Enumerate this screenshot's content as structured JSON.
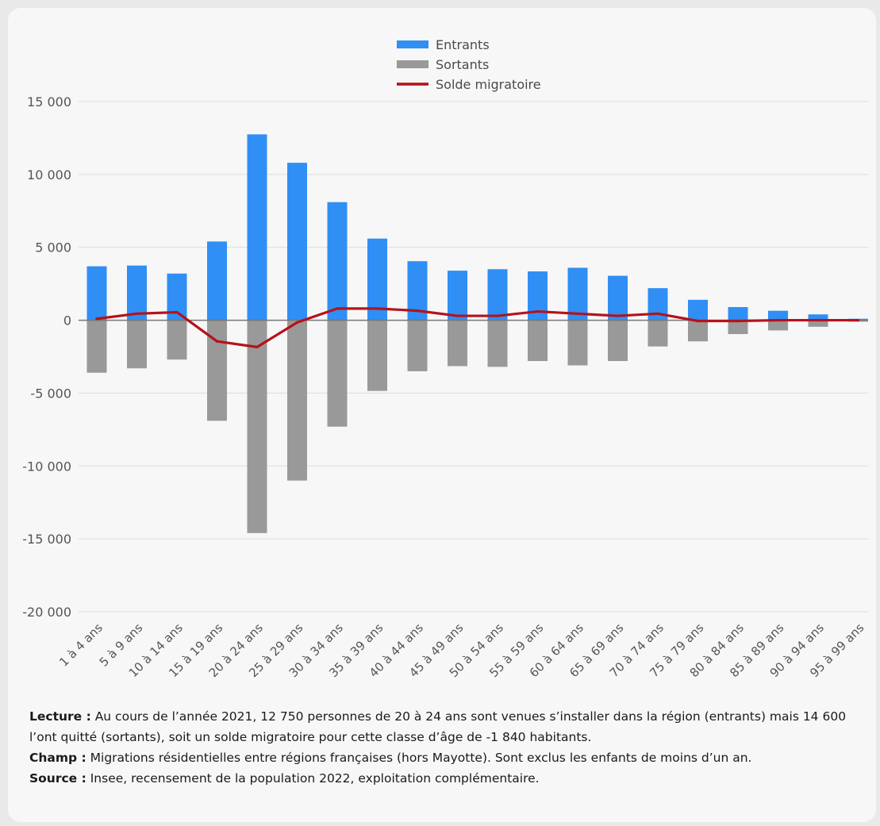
{
  "chart_data": {
    "type": "bar",
    "categories": [
      "1 à 4 ans",
      "5 à 9 ans",
      "10 à 14 ans",
      "15 à 19 ans",
      "20 à 24 ans",
      "25 à 29 ans",
      "30 à 34 ans",
      "35 à 39 ans",
      "40 à 44 ans",
      "45 à 49 ans",
      "50 à 54 ans",
      "55 à 59 ans",
      "60 à 64 ans",
      "65 à 69 ans",
      "70 à 74 ans",
      "75 à 79 ans",
      "80 à 84 ans",
      "85 à 89 ans",
      "90 à 94 ans",
      "95 à 99 ans"
    ],
    "series": [
      {
        "name": "Entrants",
        "type": "bar",
        "color": "#2f8ff5",
        "values": [
          3700,
          3750,
          3200,
          5400,
          12750,
          10800,
          8100,
          5600,
          4050,
          3400,
          3500,
          3350,
          3600,
          3050,
          2200,
          1400,
          900,
          650,
          400,
          100
        ]
      },
      {
        "name": "Sortants",
        "type": "bar",
        "color": "#999999",
        "values": [
          -3600,
          -3300,
          -2700,
          -6900,
          -14600,
          -11000,
          -7300,
          -4850,
          -3500,
          -3150,
          -3200,
          -2800,
          -3100,
          -2800,
          -1800,
          -1450,
          -950,
          -700,
          -450,
          -100
        ]
      },
      {
        "name": "Solde migratoire",
        "type": "line",
        "color": "#b5121b",
        "values": [
          100,
          450,
          550,
          -1450,
          -1840,
          -150,
          800,
          800,
          650,
          300,
          300,
          600,
          450,
          300,
          450,
          -50,
          -50,
          0,
          0,
          0
        ]
      }
    ],
    "ylim": [
      -20000,
      15000
    ],
    "yticks": [
      15000,
      10000,
      5000,
      0,
      -5000,
      -10000,
      -15000,
      -20000
    ],
    "ytick_labels": [
      "15 000",
      "10 000",
      "5 000",
      "0",
      "-5 000",
      "-10 000",
      "-15 000",
      "-20 000"
    ],
    "legend_position": "top-center",
    "grid": true
  },
  "notes": {
    "lecture_label": "Lecture :",
    "lecture_text": " Au cours de l’année 2021, 12 750 personnes de 20 à 24 ans sont venues s’installer dans la région (entrants) mais 14 600 l’ont quitté (sortants), soit un solde migratoire pour cette classe d’âge de -1 840 habitants.",
    "champ_label": "Champ :",
    "champ_text": " Migrations résidentielles entre régions françaises (hors Mayotte). Sont exclus les enfants de moins d’un an.",
    "source_label": "Source :",
    "source_text": " Insee, recensement de la population 2022, exploitation complémentaire."
  }
}
